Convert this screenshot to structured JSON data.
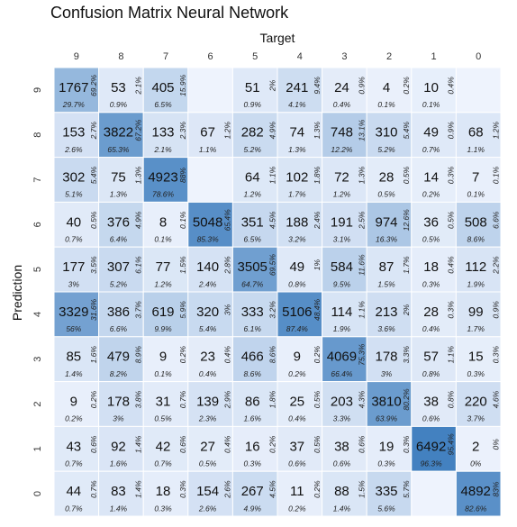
{
  "chart_data": {
    "type": "heatmap",
    "title": "Confusion Matrix Neural Network",
    "xlabel": "Target",
    "ylabel": "Prediction",
    "x_categories": [
      "9",
      "8",
      "7",
      "6",
      "5",
      "4",
      "3",
      "2",
      "1",
      "0"
    ],
    "y_categories": [
      "9",
      "8",
      "7",
      "6",
      "5",
      "4",
      "3",
      "2",
      "1",
      "0"
    ],
    "cells": [
      [
        {
          "count": "1767",
          "row_pct": "69.2%",
          "col_pct": "29.7%"
        },
        {
          "count": "53",
          "row_pct": "2.1%",
          "col_pct": "0.9%"
        },
        {
          "count": "405",
          "row_pct": "15.9%",
          "col_pct": "6.5%"
        },
        {
          "count": "",
          "row_pct": "",
          "col_pct": ""
        },
        {
          "count": "51",
          "row_pct": "2%",
          "col_pct": "0.9%"
        },
        {
          "count": "241",
          "row_pct": "9.4%",
          "col_pct": "4.1%"
        },
        {
          "count": "24",
          "row_pct": "0.9%",
          "col_pct": "0.4%"
        },
        {
          "count": "4",
          "row_pct": "0.2%",
          "col_pct": "0.1%"
        },
        {
          "count": "10",
          "row_pct": "0.4%",
          "col_pct": "0.1%"
        },
        {
          "count": "",
          "row_pct": "",
          "col_pct": ""
        }
      ],
      [
        {
          "count": "153",
          "row_pct": "2.7%",
          "col_pct": "2.6%"
        },
        {
          "count": "3822",
          "row_pct": "67.2%",
          "col_pct": "65.3%"
        },
        {
          "count": "133",
          "row_pct": "2.3%",
          "col_pct": "2.1%"
        },
        {
          "count": "67",
          "row_pct": "1.2%",
          "col_pct": "1.1%"
        },
        {
          "count": "282",
          "row_pct": "4.9%",
          "col_pct": "5.2%"
        },
        {
          "count": "74",
          "row_pct": "1.3%",
          "col_pct": "1.3%"
        },
        {
          "count": "748",
          "row_pct": "13.1%",
          "col_pct": "12.2%"
        },
        {
          "count": "310",
          "row_pct": "5.4%",
          "col_pct": "5.2%"
        },
        {
          "count": "49",
          "row_pct": "0.9%",
          "col_pct": "0.7%"
        },
        {
          "count": "68",
          "row_pct": "1.2%",
          "col_pct": "1.1%"
        }
      ],
      [
        {
          "count": "302",
          "row_pct": "5.4%",
          "col_pct": "5.1%"
        },
        {
          "count": "75",
          "row_pct": "1.3%",
          "col_pct": "1.3%"
        },
        {
          "count": "4923",
          "row_pct": "88%",
          "col_pct": "78.6%"
        },
        {
          "count": "",
          "row_pct": "",
          "col_pct": ""
        },
        {
          "count": "64",
          "row_pct": "1.1%",
          "col_pct": "1.2%"
        },
        {
          "count": "102",
          "row_pct": "1.8%",
          "col_pct": "1.7%"
        },
        {
          "count": "72",
          "row_pct": "1.3%",
          "col_pct": "1.2%"
        },
        {
          "count": "28",
          "row_pct": "0.5%",
          "col_pct": "0.5%"
        },
        {
          "count": "14",
          "row_pct": "0.3%",
          "col_pct": "0.2%"
        },
        {
          "count": "7",
          "row_pct": "0.1%",
          "col_pct": "0.1%"
        }
      ],
      [
        {
          "count": "40",
          "row_pct": "0.5%",
          "col_pct": "0.7%"
        },
        {
          "count": "376",
          "row_pct": "4.9%",
          "col_pct": "6.4%"
        },
        {
          "count": "8",
          "row_pct": "0.1%",
          "col_pct": "0.1%"
        },
        {
          "count": "5048",
          "row_pct": "65.4%",
          "col_pct": "85.3%"
        },
        {
          "count": "351",
          "row_pct": "4.5%",
          "col_pct": "6.5%"
        },
        {
          "count": "188",
          "row_pct": "2.4%",
          "col_pct": "3.2%"
        },
        {
          "count": "191",
          "row_pct": "2.5%",
          "col_pct": "3.1%"
        },
        {
          "count": "974",
          "row_pct": "12.6%",
          "col_pct": "16.3%"
        },
        {
          "count": "36",
          "row_pct": "0.5%",
          "col_pct": "0.5%"
        },
        {
          "count": "508",
          "row_pct": "6.6%",
          "col_pct": "8.6%"
        }
      ],
      [
        {
          "count": "177",
          "row_pct": "3.5%",
          "col_pct": "3%"
        },
        {
          "count": "307",
          "row_pct": "6.1%",
          "col_pct": "5.2%"
        },
        {
          "count": "77",
          "row_pct": "1.5%",
          "col_pct": "1.2%"
        },
        {
          "count": "140",
          "row_pct": "2.8%",
          "col_pct": "2.4%"
        },
        {
          "count": "3505",
          "row_pct": "69.5%",
          "col_pct": "64.7%"
        },
        {
          "count": "49",
          "row_pct": "1%",
          "col_pct": "0.8%"
        },
        {
          "count": "584",
          "row_pct": "11.6%",
          "col_pct": "9.5%"
        },
        {
          "count": "87",
          "row_pct": "1.7%",
          "col_pct": "1.5%"
        },
        {
          "count": "18",
          "row_pct": "0.4%",
          "col_pct": "0.3%"
        },
        {
          "count": "112",
          "row_pct": "2.2%",
          "col_pct": "1.9%"
        }
      ],
      [
        {
          "count": "3329",
          "row_pct": "31.6%",
          "col_pct": "56%"
        },
        {
          "count": "386",
          "row_pct": "3.7%",
          "col_pct": "6.6%"
        },
        {
          "count": "619",
          "row_pct": "5.9%",
          "col_pct": "9.9%"
        },
        {
          "count": "320",
          "row_pct": "3%",
          "col_pct": "5.4%"
        },
        {
          "count": "333",
          "row_pct": "3.2%",
          "col_pct": "6.1%"
        },
        {
          "count": "5106",
          "row_pct": "48.4%",
          "col_pct": "87.4%"
        },
        {
          "count": "114",
          "row_pct": "1.1%",
          "col_pct": "1.9%"
        },
        {
          "count": "213",
          "row_pct": "2%",
          "col_pct": "3.6%"
        },
        {
          "count": "28",
          "row_pct": "0.3%",
          "col_pct": "0.4%"
        },
        {
          "count": "99",
          "row_pct": "0.9%",
          "col_pct": "1.7%"
        }
      ],
      [
        {
          "count": "85",
          "row_pct": "1.6%",
          "col_pct": "1.4%"
        },
        {
          "count": "479",
          "row_pct": "8.9%",
          "col_pct": "8.2%"
        },
        {
          "count": "9",
          "row_pct": "0.2%",
          "col_pct": "0.1%"
        },
        {
          "count": "23",
          "row_pct": "0.4%",
          "col_pct": "0.4%"
        },
        {
          "count": "466",
          "row_pct": "8.6%",
          "col_pct": "8.6%"
        },
        {
          "count": "9",
          "row_pct": "0.2%",
          "col_pct": "0.2%"
        },
        {
          "count": "4069",
          "row_pct": "75.3%",
          "col_pct": "66.4%"
        },
        {
          "count": "178",
          "row_pct": "3.3%",
          "col_pct": "3%"
        },
        {
          "count": "57",
          "row_pct": "1.1%",
          "col_pct": "0.8%"
        },
        {
          "count": "15",
          "row_pct": "0.3%",
          "col_pct": "0.3%"
        }
      ],
      [
        {
          "count": "9",
          "row_pct": "0.2%",
          "col_pct": "0.2%"
        },
        {
          "count": "178",
          "row_pct": "3.8%",
          "col_pct": "3%"
        },
        {
          "count": "31",
          "row_pct": "0.7%",
          "col_pct": "0.5%"
        },
        {
          "count": "139",
          "row_pct": "2.9%",
          "col_pct": "2.3%"
        },
        {
          "count": "86",
          "row_pct": "1.8%",
          "col_pct": "1.6%"
        },
        {
          "count": "25",
          "row_pct": "0.5%",
          "col_pct": "0.4%"
        },
        {
          "count": "203",
          "row_pct": "4.3%",
          "col_pct": "3.3%"
        },
        {
          "count": "3810",
          "row_pct": "80.2%",
          "col_pct": "63.9%"
        },
        {
          "count": "38",
          "row_pct": "0.8%",
          "col_pct": "0.6%"
        },
        {
          "count": "220",
          "row_pct": "4.6%",
          "col_pct": "3.7%"
        }
      ],
      [
        {
          "count": "43",
          "row_pct": "0.6%",
          "col_pct": "0.7%"
        },
        {
          "count": "92",
          "row_pct": "1.4%",
          "col_pct": "1.6%"
        },
        {
          "count": "42",
          "row_pct": "0.6%",
          "col_pct": "0.7%"
        },
        {
          "count": "27",
          "row_pct": "0.4%",
          "col_pct": "0.5%"
        },
        {
          "count": "16",
          "row_pct": "0.2%",
          "col_pct": "0.3%"
        },
        {
          "count": "37",
          "row_pct": "0.5%",
          "col_pct": "0.6%"
        },
        {
          "count": "38",
          "row_pct": "0.6%",
          "col_pct": "0.6%"
        },
        {
          "count": "19",
          "row_pct": "0.3%",
          "col_pct": "0.3%"
        },
        {
          "count": "6492",
          "row_pct": "95.4%",
          "col_pct": "96.3%"
        },
        {
          "count": "2",
          "row_pct": "0%",
          "col_pct": "0%"
        }
      ],
      [
        {
          "count": "44",
          "row_pct": "0.7%",
          "col_pct": "0.7%"
        },
        {
          "count": "83",
          "row_pct": "1.4%",
          "col_pct": "1.4%"
        },
        {
          "count": "18",
          "row_pct": "0.3%",
          "col_pct": "0.3%"
        },
        {
          "count": "154",
          "row_pct": "2.6%",
          "col_pct": "2.6%"
        },
        {
          "count": "267",
          "row_pct": "4.5%",
          "col_pct": "4.9%"
        },
        {
          "count": "11",
          "row_pct": "0.2%",
          "col_pct": "0.2%"
        },
        {
          "count": "88",
          "row_pct": "1.5%",
          "col_pct": "1.4%"
        },
        {
          "count": "335",
          "row_pct": "5.7%",
          "col_pct": "5.6%"
        },
        {
          "count": "",
          "row_pct": "",
          "col_pct": ""
        },
        {
          "count": "4892",
          "row_pct": "83%",
          "col_pct": "82.6%"
        }
      ]
    ],
    "colors": {
      "background": "#eef3fd",
      "low": "#eef3fd",
      "high": "#3a7bbd",
      "grid": "#ffffff"
    },
    "grid": true,
    "legend": "none"
  }
}
